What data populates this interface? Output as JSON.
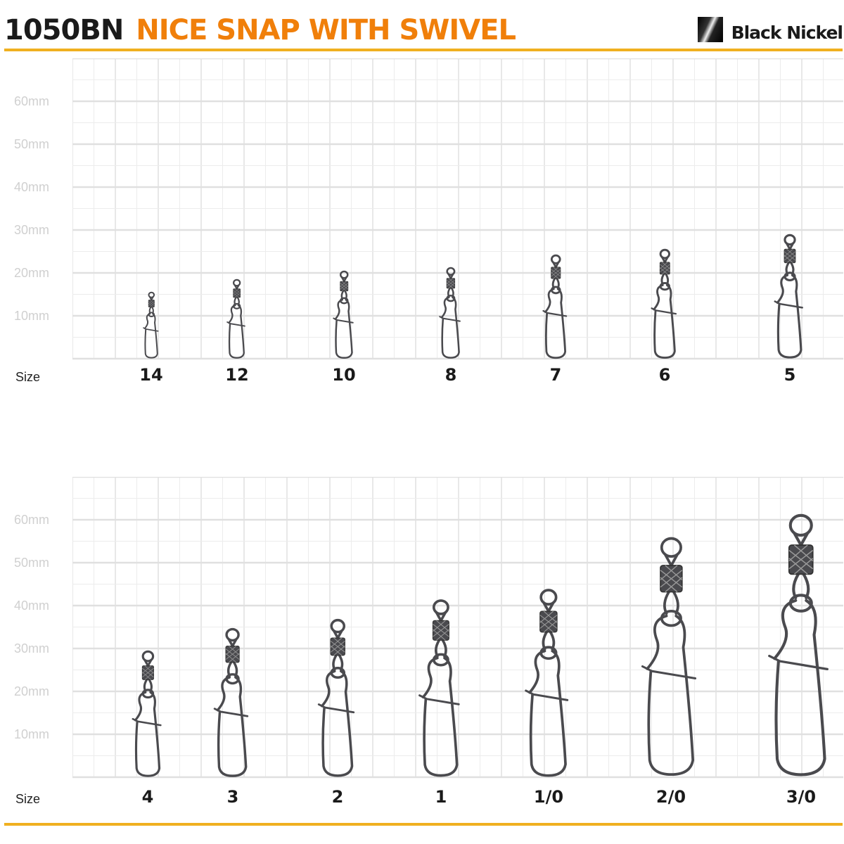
{
  "header": {
    "code": "1050BN",
    "title": "NICE SNAP WITH SWIVEL",
    "finish": "Black Nickel"
  },
  "colors": {
    "title": "#f07f0a",
    "rule": "#f0b020",
    "grid": "#e6e6e6",
    "metal": "#4a4a4e"
  },
  "axis": {
    "size_label": "Size",
    "ticks": [
      "60mm",
      "50mm",
      "40mm",
      "30mm",
      "20mm",
      "10mm"
    ]
  },
  "panels": [
    {
      "items": [
        {
          "size": "14",
          "length_mm": 15.5
        },
        {
          "size": "12",
          "length_mm": 18.5
        },
        {
          "size": "10",
          "length_mm": 20.5
        },
        {
          "size": "8",
          "length_mm": 21.3
        },
        {
          "size": "7",
          "length_mm": 24.3
        },
        {
          "size": "6",
          "length_mm": 25.6
        },
        {
          "size": "5",
          "length_mm": 29
        }
      ]
    },
    {
      "items": [
        {
          "size": "4",
          "length_mm": 29.5
        },
        {
          "size": "3",
          "length_mm": 34.8
        },
        {
          "size": "2",
          "length_mm": 36.9
        },
        {
          "size": "1",
          "length_mm": 41.5
        },
        {
          "size": "1/0",
          "length_mm": 44
        },
        {
          "size": "2/0",
          "length_mm": 56
        },
        {
          "size": "3/0",
          "length_mm": 61.5
        }
      ]
    }
  ]
}
